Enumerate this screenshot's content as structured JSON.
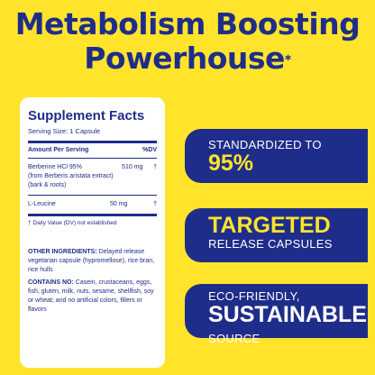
{
  "headline": {
    "line1": "Metabolism Boosting",
    "line2": "Powerhouse",
    "mark": "*"
  },
  "facts": {
    "title": "Supplement Facts",
    "serving": "Serving Size: 1 Capsule",
    "col_amount": "Amount Per Serving",
    "col_dv": "%DV",
    "items": [
      {
        "name": "Berberine HCl 95%",
        "detail": "(from Berberis aristata extract) (bark & roots)",
        "amount": "510 mg",
        "dv": "†"
      },
      {
        "name": "L-Leucine",
        "amount": "50 mg",
        "dv": "†"
      }
    ],
    "note": "† Daily Value (DV) not established",
    "other_label": "OTHER INGREDIENTS:",
    "other_text": "Delayed release vegetarian capsule (hypromellose), rice bran, rice hulls",
    "contains_label": "CONTAINS NO:",
    "contains_text": "Casein, crustaceans, eggs, fish, gluten, milk, nuts, sesame, shellfish, soy or wheat; and no artificial colors, fillers or flavors"
  },
  "claims": [
    {
      "small": "STANDARDIZED TO",
      "big": "95%"
    },
    {
      "big": "TARGETED",
      "small": "RELEASE CAPSULES"
    },
    {
      "small": "ECO-FRIENDLY,",
      "big": "SUSTAINABLE",
      "small2": "SOURCE"
    }
  ],
  "colors": {
    "brand_blue": "#1f2d8a",
    "brand_yellow": "#ffe42b"
  }
}
